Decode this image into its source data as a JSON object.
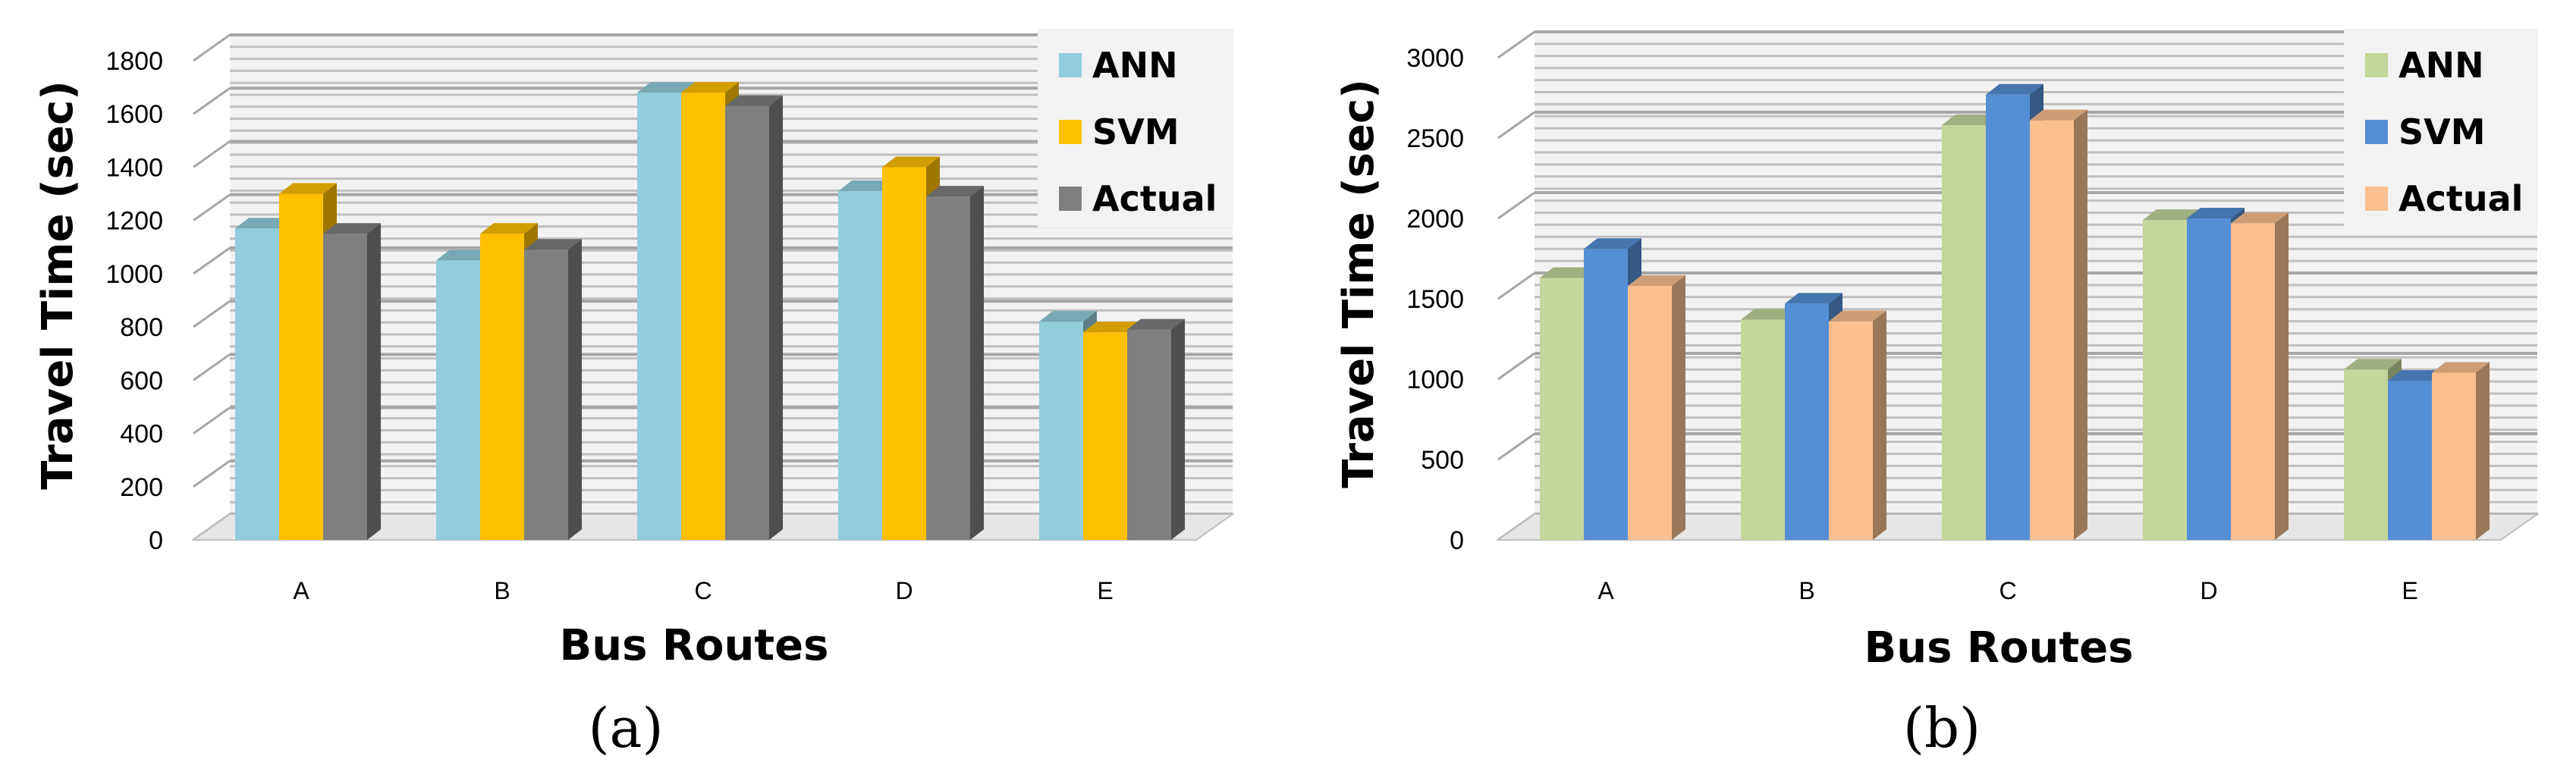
{
  "chart_data": [
    {
      "type": "bar",
      "panel_label": "(a)",
      "categories": [
        "A",
        "B",
        "C",
        "D",
        "E"
      ],
      "series": [
        {
          "name": "ANN",
          "values": [
            1170,
            1050,
            1680,
            1310,
            820
          ],
          "color": "#92CDDC"
        },
        {
          "name": "SVM",
          "values": [
            1300,
            1150,
            1680,
            1400,
            780
          ],
          "color": "#FFC000"
        },
        {
          "name": "Actual",
          "values": [
            1150,
            1090,
            1630,
            1290,
            790
          ],
          "color": "#7F7F7F"
        }
      ],
      "xlabel": "Bus Routes",
      "ylabel": "Travel Time (sec)",
      "ylim": [
        0,
        1800
      ],
      "yticks": [
        "0",
        "200",
        "400",
        "600",
        "800",
        "1000",
        "1200",
        "1400",
        "1600",
        "1800"
      ],
      "legend_position": "top-right",
      "grid": true
    },
    {
      "type": "bar",
      "panel_label": "(b)",
      "categories": [
        "A",
        "B",
        "C",
        "D",
        "E"
      ],
      "series": [
        {
          "name": "ANN",
          "values": [
            1630,
            1370,
            2580,
            1990,
            1060
          ],
          "color": "#C3D69B"
        },
        {
          "name": "SVM",
          "values": [
            1810,
            1470,
            2770,
            2000,
            990
          ],
          "color": "#558ED5"
        },
        {
          "name": "Actual",
          "values": [
            1580,
            1360,
            2610,
            1970,
            1040
          ],
          "color": "#FAC090"
        }
      ],
      "xlabel": "Bus Routes",
      "ylabel": "Travel Time (sec)",
      "ylim": [
        0,
        3000
      ],
      "yticks": [
        "0",
        "500",
        "1000",
        "1500",
        "2000",
        "2500",
        "3000"
      ],
      "legend_position": "top-right",
      "grid": true
    }
  ]
}
